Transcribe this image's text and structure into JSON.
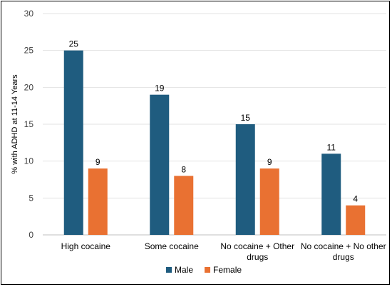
{
  "chart_data": {
    "type": "bar",
    "ylabel": "% with ADHD at 11-14 Years",
    "xlabel": "",
    "ylim": [
      0,
      30
    ],
    "yticks": [
      0,
      5,
      10,
      15,
      20,
      25,
      30
    ],
    "grid": true,
    "legend": "bottom",
    "categories": [
      [
        "High cocaine"
      ],
      [
        "Some cocaine"
      ],
      [
        "No cocaine + Other",
        "drugs"
      ],
      [
        "No cocaine + No other",
        "drugs"
      ]
    ],
    "series": [
      {
        "name": "Male",
        "color": "#1F5C7F",
        "values": [
          25,
          19,
          15,
          11
        ]
      },
      {
        "name": "Female",
        "color": "#E97132",
        "values": [
          9,
          8,
          9,
          4
        ]
      }
    ]
  }
}
